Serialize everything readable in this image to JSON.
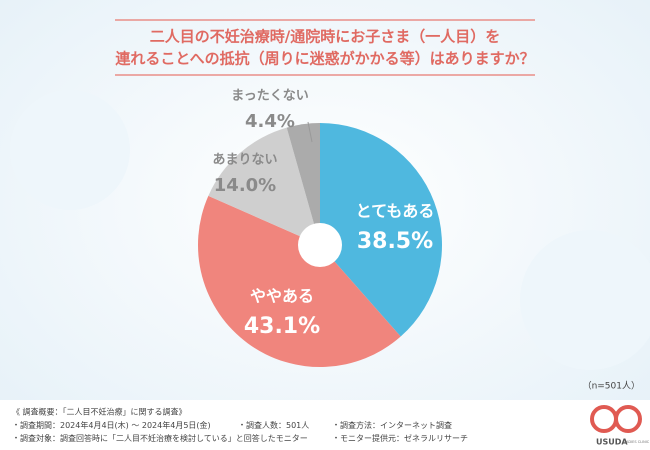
{
  "chart_data": {
    "type": "pie",
    "title": [
      "二人目の不妊治療時/通院時にお子さま（一人目）を",
      "連れることへの抵抗（周りに迷惑がかかる等）はありますか？"
    ],
    "categories": [
      "とてもある",
      "ややある",
      "あまりない",
      "まったくない"
    ],
    "values": [
      38.5,
      43.1,
      14.0,
      4.4
    ],
    "value_labels": [
      "38.5%",
      "43.1%",
      "14.0%",
      "4.4%"
    ],
    "colors": [
      "#4fb8df",
      "#f0857d",
      "#cfcfcf",
      "#ababab"
    ],
    "note": "（n=501人）"
  },
  "footer": {
    "heading": "《 調査概要：「二人目不妊治療」に関する調査》",
    "items": [
      "調査期間：2024年4月4日(木) ～ 2024年4月5日(金)",
      "調査人数：501人",
      "調査方法：インターネット調査",
      "調査対象：調査回答時に「二人目不妊治療を検討している」と回答したモニター",
      "モニター提供元：ゼネラルリサーチ"
    ]
  },
  "logo": {
    "name": "USUDA",
    "subtitle": "LADIES CLINIC"
  }
}
